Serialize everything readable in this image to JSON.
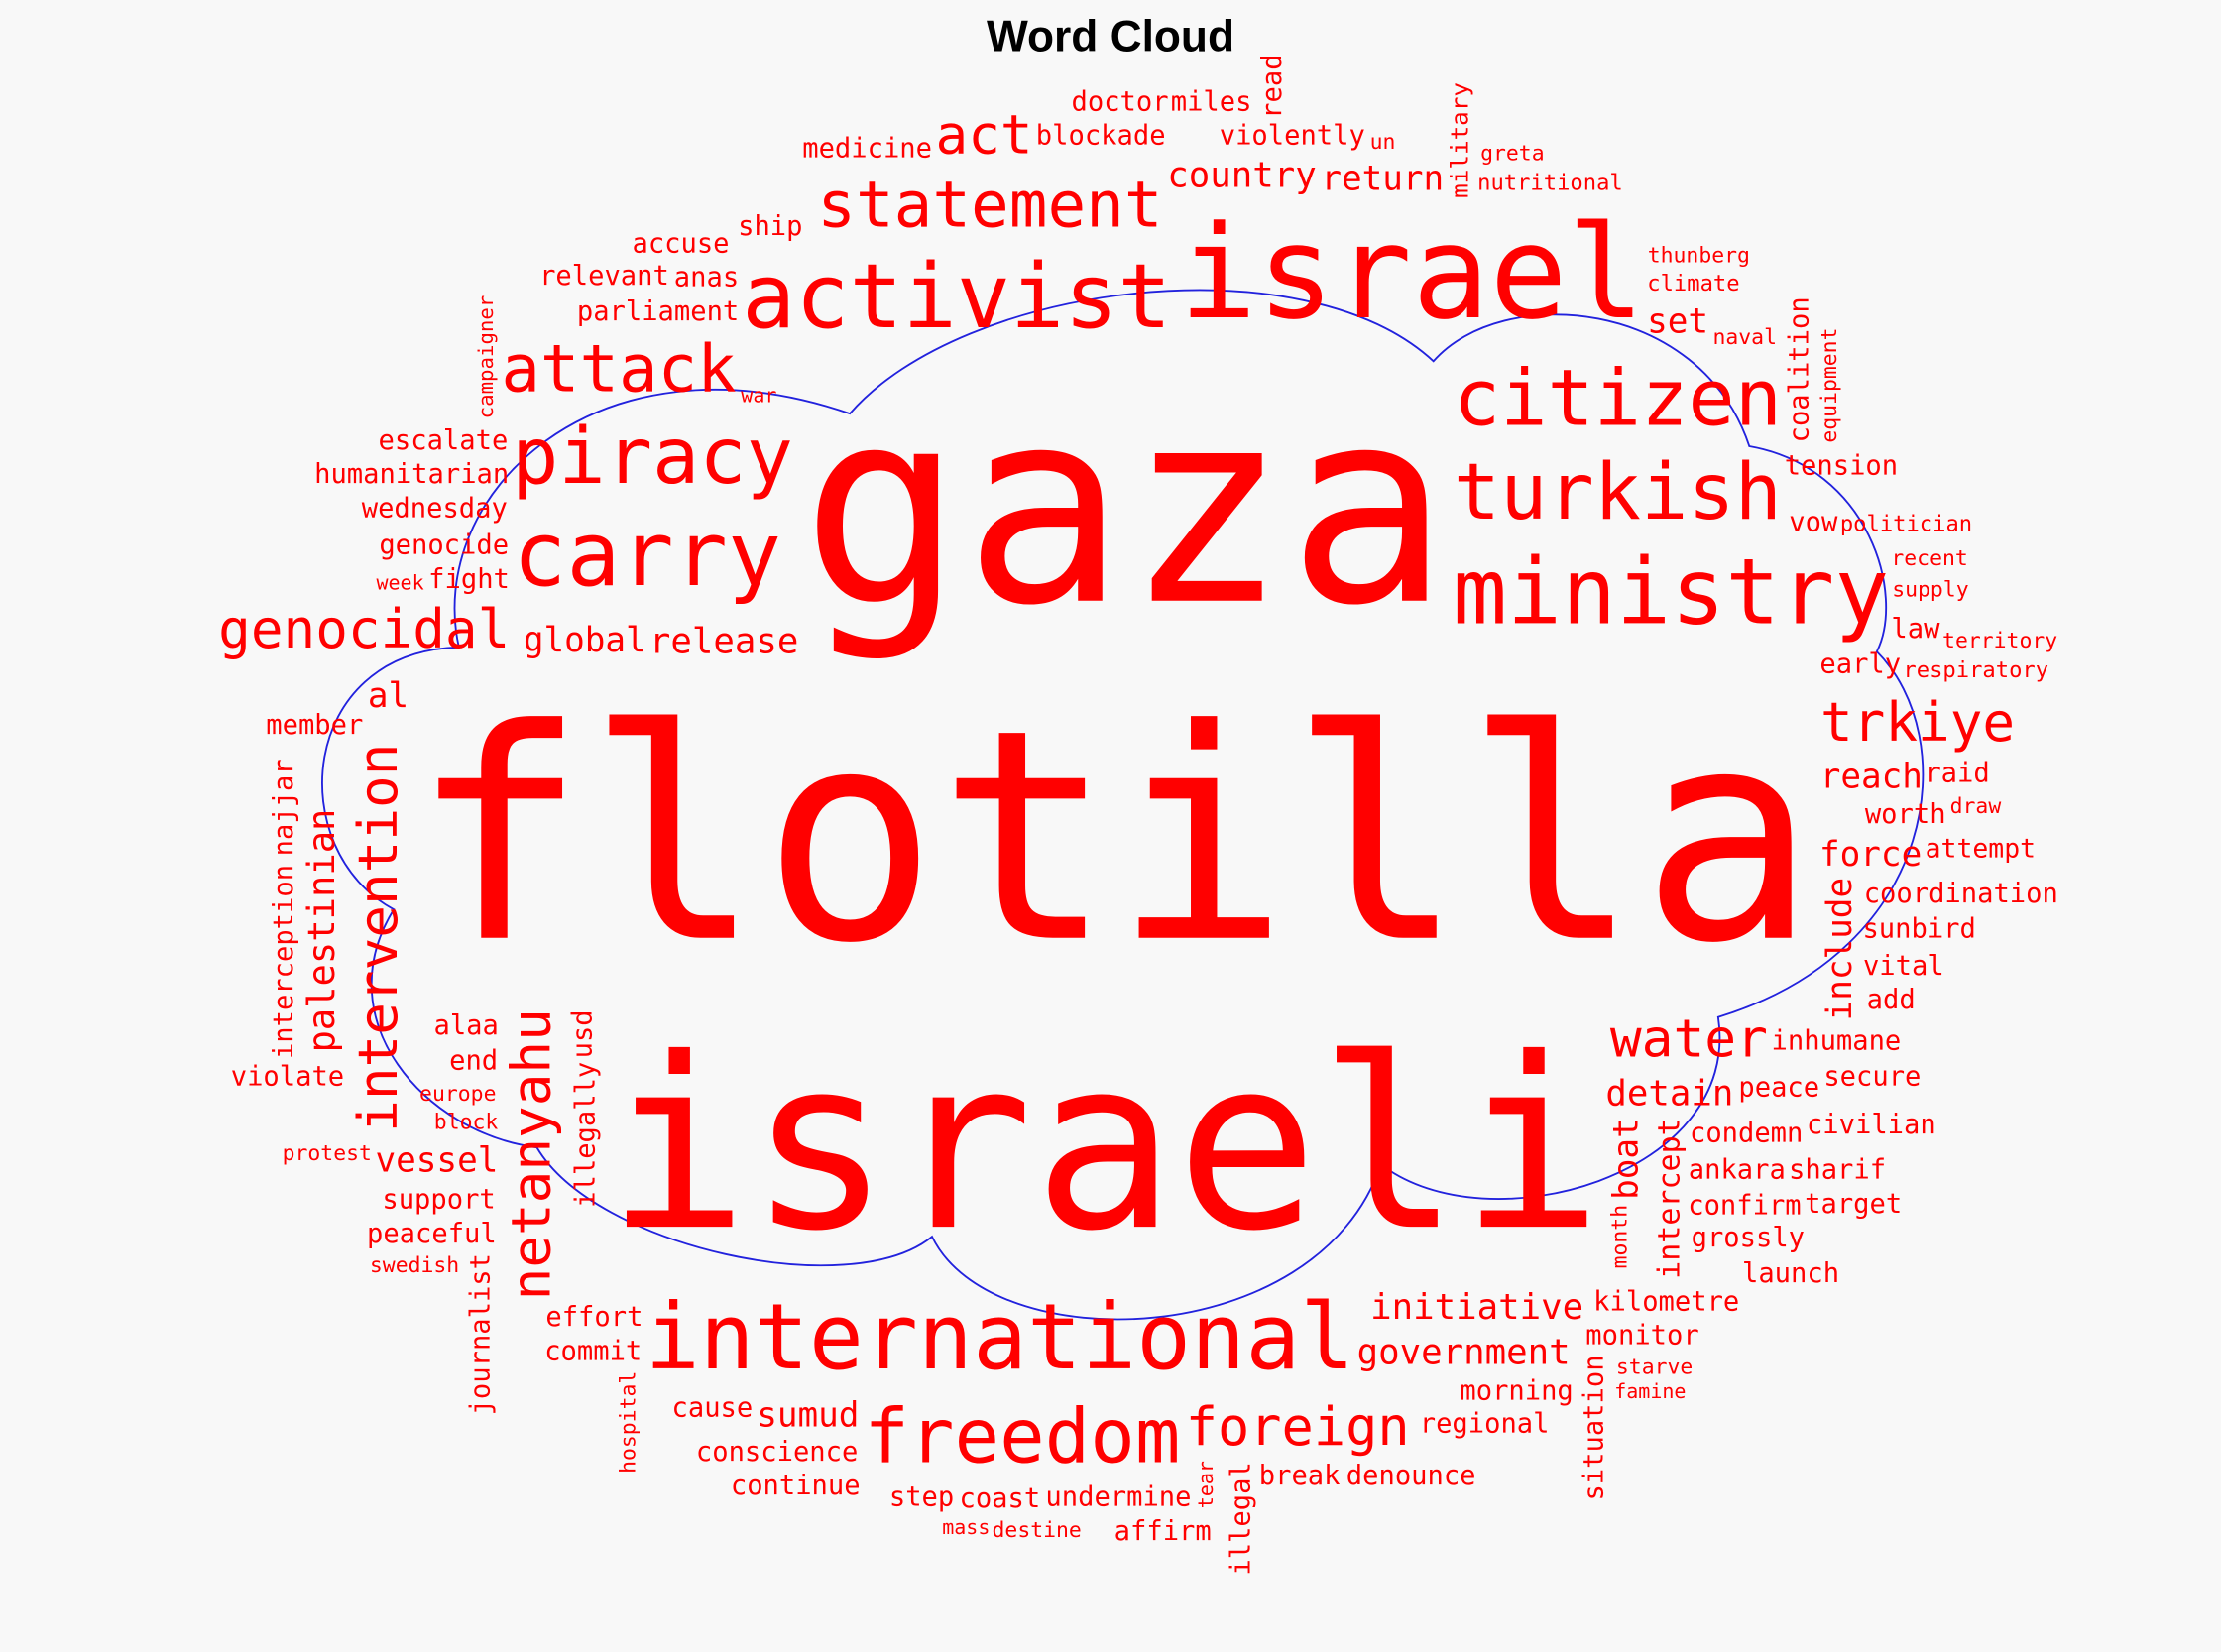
{
  "title": "Word Cloud",
  "colors": {
    "words": "#ff0000",
    "outline": "#2222dd",
    "background": "#f8f8f8"
  },
  "words": [
    "gaza",
    "flotilla",
    "israeli",
    "israel",
    "international",
    "activist",
    "ministry",
    "turkish",
    "citizen",
    "statement",
    "carry",
    "attack",
    "piracy",
    "freedom",
    "genocidal",
    "foreign",
    "water",
    "trkiye",
    "act",
    "return",
    "violently",
    "set",
    "thunberg",
    "nutritional",
    "naval",
    "climate",
    "tension",
    "greta",
    "vow",
    "politician",
    "early",
    "un",
    "supply",
    "recent",
    "law",
    "territory",
    "worth",
    "reach",
    "respiratory",
    "coordination",
    "draw",
    "inhumane",
    "raid",
    "condemn",
    "sunbird",
    "attempt",
    "peace",
    "force",
    "vital",
    "detain",
    "add",
    "ankara",
    "confirm",
    "secure",
    "kilometre",
    "starve",
    "civilian",
    "grossly",
    "sharif",
    "target",
    "monitor",
    "morning",
    "launch",
    "regional",
    "initiative",
    "famine",
    "break",
    "undermine",
    "affirm",
    "sumud",
    "conscience",
    "coast",
    "destine",
    "cause",
    "step",
    "mass",
    "effort",
    "commit",
    "alaa",
    "vessel",
    "denounce",
    "government",
    "continue",
    "support",
    "end",
    "europe",
    "block",
    "fight",
    "war",
    "global",
    "parliament",
    "release",
    "blockade",
    "country",
    "genocide",
    "wednesday",
    "al",
    "week",
    "member",
    "humanitarian",
    "escalate",
    "anas",
    "relevant",
    "accuse",
    "ship",
    "doctor",
    "medicine",
    "miles",
    "violate",
    "protest",
    "peaceful",
    "swedish",
    "intervention",
    "netanyahu",
    "palestinian",
    "interception",
    "najjar",
    "usd",
    "illegally",
    "journalist",
    "hospital",
    "campaigner",
    "read",
    "military",
    "illegal",
    "tear",
    "month",
    "coalition",
    "intercept",
    "situation",
    "equipment",
    "boat",
    "include"
  ]
}
